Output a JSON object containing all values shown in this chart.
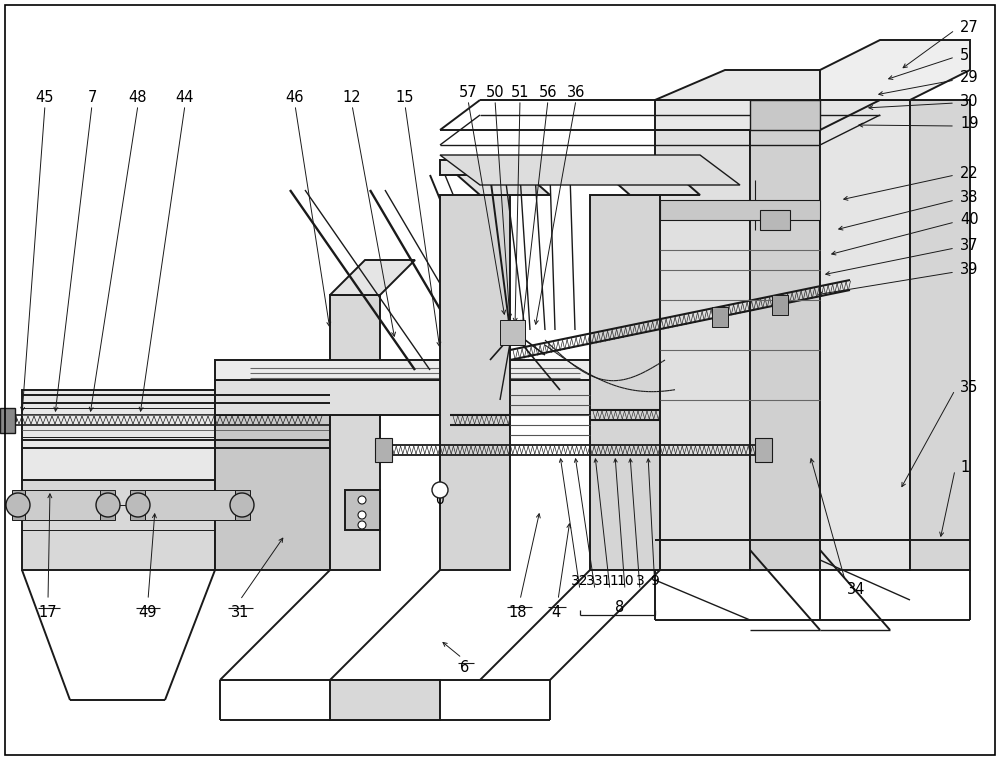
{
  "background_color": "#ffffff",
  "line_color": "#000000",
  "figsize": [
    10.0,
    7.6
  ],
  "dpi": 100,
  "font_size": 10.5
}
